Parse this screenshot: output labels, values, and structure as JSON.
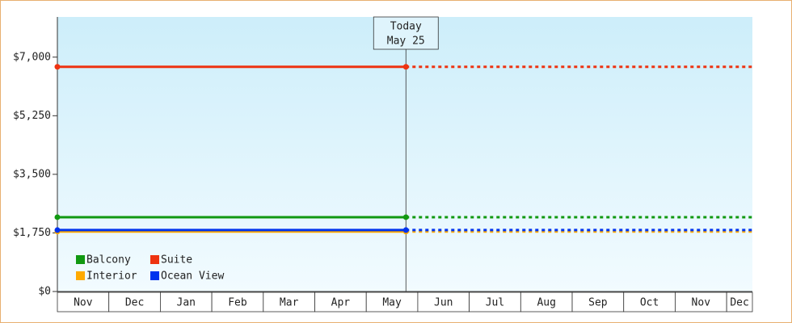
{
  "chart_data": {
    "type": "line",
    "annotation": [
      "Today",
      "May 25"
    ],
    "categories": [
      "Nov",
      "Dec",
      "Jan",
      "Feb",
      "Mar",
      "Apr",
      "May",
      "Jun",
      "Jul",
      "Aug",
      "Sep",
      "Oct",
      "Nov",
      "Dec"
    ],
    "xlim": [
      0,
      13.5
    ],
    "ylim": [
      0,
      8200
    ],
    "yticks": [
      {
        "value": 0,
        "label": "$0"
      },
      {
        "value": 1750,
        "label": "$1,750"
      },
      {
        "value": 3500,
        "label": "$3,500"
      },
      {
        "value": 5250,
        "label": "$5,250"
      },
      {
        "value": 7000,
        "label": "$7,000"
      }
    ],
    "x": [
      0,
      6.77
    ],
    "series": [
      {
        "name": "Balcony",
        "color": "#119911",
        "values": [
          2220,
          2220
        ]
      },
      {
        "name": "Suite",
        "color": "#ee3311",
        "values": [
          6710,
          6710
        ]
      },
      {
        "name": "Interior",
        "color": "#ffaa00",
        "values": [
          1790,
          1790
        ]
      },
      {
        "name": "Ocean View",
        "color": "#0033ee",
        "values": [
          1835,
          1835
        ]
      }
    ],
    "legend": "lower-left"
  }
}
